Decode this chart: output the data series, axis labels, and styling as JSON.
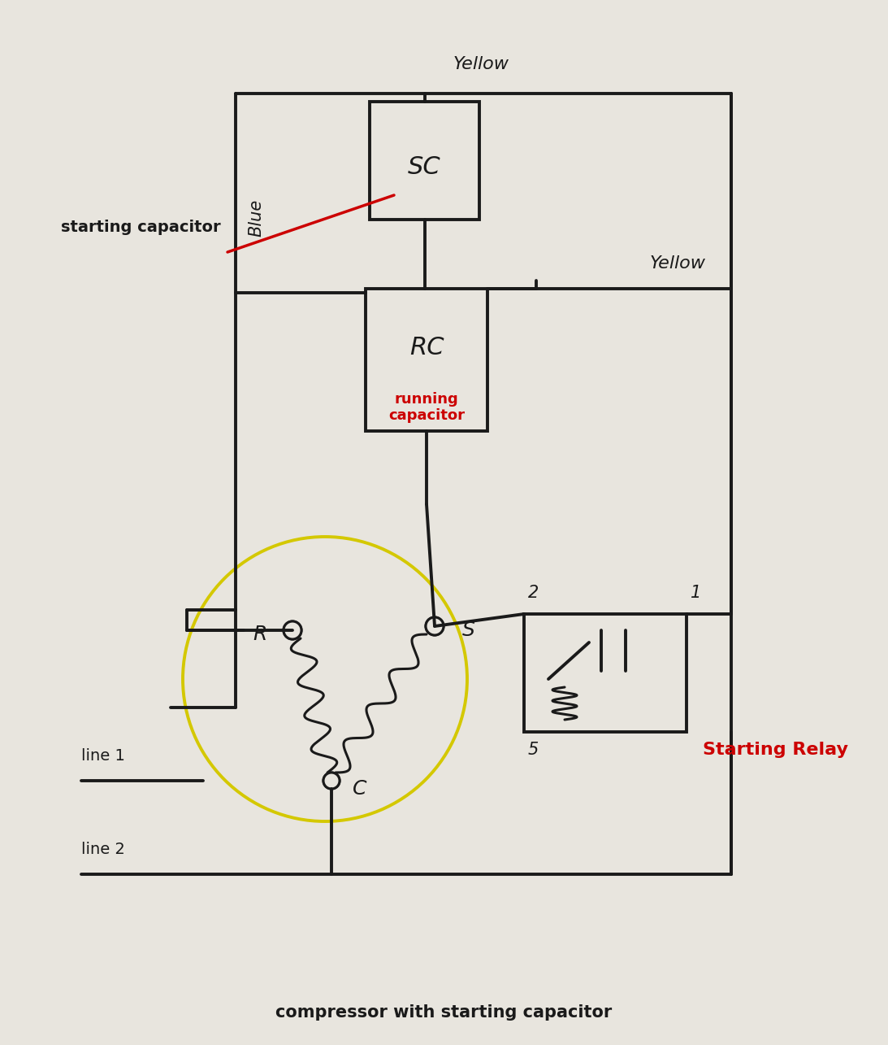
{
  "bg_color": "#e8e5de",
  "line_color": "#1a1a1a",
  "red_color": "#cc0000",
  "yellow_color": "#d4c800",
  "title": "compressor with starting capacitor",
  "title_fontsize": 15,
  "title_color": "#1a1a1a",
  "sc_label": "SC",
  "rc_label": "RC",
  "rc_sublabel_1": "running",
  "rc_sublabel_2": "capacitor",
  "starting_cap_label": "starting capacitor",
  "blue_label": "Blue",
  "yellow_top_label": "Yellow",
  "yellow_mid_label": "Yellow",
  "r_label": "R",
  "s_label": "S",
  "c_label": "C",
  "line1_label": "line 1",
  "line2_label": "line 2",
  "relay_label": "Starting Relay",
  "num1": "1",
  "num2": "2",
  "num5": "5"
}
